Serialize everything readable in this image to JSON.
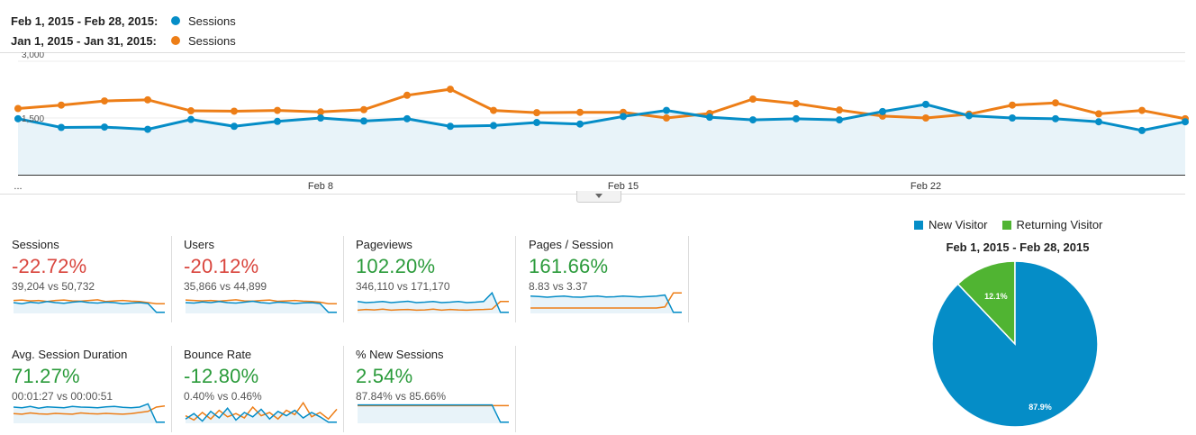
{
  "legend": {
    "current": {
      "range": "Feb 1, 2015 - Feb 28, 2015:",
      "metric": "Sessions",
      "color": "#058dc7"
    },
    "previous": {
      "range": "Jan 1, 2015 - Jan 31, 2015:",
      "metric": "Sessions",
      "color": "#ed7e17"
    }
  },
  "chart_data": [
    {
      "type": "line",
      "ylim": [
        0,
        3000
      ],
      "y_ticks": [
        "3,000",
        "1,500"
      ],
      "x_ticks": [
        "...",
        "Feb 8",
        "Feb 15",
        "Feb 22"
      ],
      "series": [
        {
          "name": "Sessions",
          "range": "Feb 1, 2015 - Feb 28, 2015",
          "color": "#058dc7",
          "values": [
            1480,
            1250,
            1260,
            1200,
            1460,
            1280,
            1410,
            1500,
            1420,
            1480,
            1280,
            1300,
            1380,
            1340,
            1540,
            1700,
            1520,
            1450,
            1480,
            1450,
            1670,
            1860,
            1560,
            1500,
            1480,
            1400,
            1170,
            1400
          ]
        },
        {
          "name": "Sessions",
          "range": "Jan 1, 2015 - Jan 31, 2015",
          "color": "#ed7e17",
          "values": [
            1750,
            1840,
            1950,
            1980,
            1690,
            1680,
            1700,
            1660,
            1720,
            2100,
            2260,
            1700,
            1640,
            1650,
            1650,
            1500,
            1620,
            2000,
            1880,
            1710,
            1550,
            1500,
            1600,
            1840,
            1900,
            1610,
            1700,
            1480
          ]
        }
      ]
    },
    {
      "type": "pie",
      "title": "Feb 1, 2015 - Feb 28, 2015",
      "slices": [
        {
          "name": "New Visitor",
          "value": 87.9,
          "label": "87.9%",
          "color": "#058dc7"
        },
        {
          "name": "Returning Visitor",
          "value": 12.1,
          "label": "12.1%",
          "color": "#50b432"
        }
      ]
    }
  ],
  "metrics": [
    {
      "title": "Sessions",
      "value": "-22.72%",
      "sub": "39,204 vs 50,732",
      "tone": "neg",
      "spark": {
        "a": [
          0.5,
          0.45,
          0.52,
          0.48,
          0.55,
          0.5,
          0.47,
          0.52,
          0.55,
          0.5,
          0.48,
          0.52,
          0.5,
          0.45,
          0.48,
          0.5,
          0.46,
          0.05,
          0.05
        ],
        "b": [
          0.6,
          0.62,
          0.58,
          0.6,
          0.55,
          0.6,
          0.62,
          0.58,
          0.57,
          0.6,
          0.63,
          0.55,
          0.58,
          0.6,
          0.57,
          0.55,
          0.5,
          0.45,
          0.45
        ],
        "fill": "a"
      }
    },
    {
      "title": "Users",
      "value": "-20.12%",
      "sub": "35,866 vs 44,899",
      "tone": "neg",
      "spark": {
        "a": [
          0.5,
          0.48,
          0.53,
          0.5,
          0.55,
          0.5,
          0.48,
          0.52,
          0.56,
          0.5,
          0.47,
          0.52,
          0.5,
          0.46,
          0.49,
          0.5,
          0.46,
          0.05,
          0.05
        ],
        "b": [
          0.62,
          0.6,
          0.58,
          0.6,
          0.57,
          0.6,
          0.63,
          0.58,
          0.57,
          0.6,
          0.62,
          0.56,
          0.58,
          0.6,
          0.57,
          0.55,
          0.52,
          0.45,
          0.45
        ],
        "fill": "a"
      }
    },
    {
      "title": "Pageviews",
      "value": "102.20%",
      "sub": "346,110 vs 171,170",
      "tone": "pos",
      "spark": {
        "a": [
          0.55,
          0.5,
          0.52,
          0.55,
          0.5,
          0.53,
          0.56,
          0.5,
          0.52,
          0.55,
          0.5,
          0.52,
          0.55,
          0.5,
          0.52,
          0.55,
          0.95,
          0.05,
          0.05
        ],
        "b": [
          0.15,
          0.18,
          0.16,
          0.2,
          0.15,
          0.17,
          0.18,
          0.15,
          0.16,
          0.2,
          0.15,
          0.18,
          0.16,
          0.15,
          0.17,
          0.18,
          0.2,
          0.55,
          0.55
        ],
        "fill": "a"
      }
    },
    {
      "title": "Pages / Session",
      "value": "161.66%",
      "sub": "8.83 vs 3.37",
      "tone": "pos",
      "spark": {
        "a": [
          0.8,
          0.78,
          0.75,
          0.78,
          0.8,
          0.76,
          0.75,
          0.78,
          0.8,
          0.76,
          0.77,
          0.8,
          0.78,
          0.76,
          0.78,
          0.8,
          0.85,
          0.05,
          0.05
        ],
        "b": [
          0.25,
          0.25,
          0.25,
          0.25,
          0.25,
          0.25,
          0.25,
          0.25,
          0.25,
          0.25,
          0.25,
          0.25,
          0.25,
          0.25,
          0.25,
          0.25,
          0.3,
          0.95,
          0.95
        ],
        "fill": "a"
      }
    },
    {
      "title": "Avg. Session Duration",
      "value": "71.27%",
      "sub": "00:01:27 vs 00:00:51",
      "tone": "pos",
      "spark": {
        "a": [
          0.75,
          0.72,
          0.78,
          0.7,
          0.76,
          0.74,
          0.72,
          0.78,
          0.75,
          0.74,
          0.72,
          0.76,
          0.78,
          0.74,
          0.72,
          0.75,
          0.9,
          0.05,
          0.05
        ],
        "b": [
          0.45,
          0.42,
          0.48,
          0.44,
          0.42,
          0.46,
          0.44,
          0.42,
          0.48,
          0.45,
          0.43,
          0.46,
          0.44,
          0.42,
          0.45,
          0.5,
          0.55,
          0.75,
          0.8
        ],
        "fill": "a"
      }
    },
    {
      "title": "Bounce Rate",
      "value": "-12.80%",
      "sub": "0.40% vs 0.46%",
      "tone": "pos",
      "spark": {
        "a": [
          0.2,
          0.45,
          0.1,
          0.55,
          0.25,
          0.7,
          0.15,
          0.5,
          0.3,
          0.65,
          0.2,
          0.55,
          0.35,
          0.6,
          0.25,
          0.5,
          0.3,
          0.05,
          0.05
        ],
        "b": [
          0.35,
          0.15,
          0.5,
          0.2,
          0.6,
          0.3,
          0.45,
          0.25,
          0.75,
          0.35,
          0.5,
          0.2,
          0.6,
          0.4,
          0.95,
          0.3,
          0.5,
          0.2,
          0.65
        ],
        "fill": "a"
      }
    },
    {
      "title": "% New Sessions",
      "value": "2.54%",
      "sub": "87.84% vs 85.66%",
      "tone": "pos",
      "spark": {
        "a": [
          0.85,
          0.85,
          0.85,
          0.85,
          0.85,
          0.85,
          0.85,
          0.85,
          0.85,
          0.85,
          0.85,
          0.85,
          0.85,
          0.85,
          0.85,
          0.85,
          0.85,
          0.05,
          0.05
        ],
        "b": [
          0.82,
          0.82,
          0.82,
          0.82,
          0.82,
          0.82,
          0.82,
          0.82,
          0.82,
          0.82,
          0.82,
          0.82,
          0.82,
          0.82,
          0.82,
          0.82,
          0.82,
          0.82,
          0.82
        ],
        "fill": "a"
      }
    }
  ]
}
